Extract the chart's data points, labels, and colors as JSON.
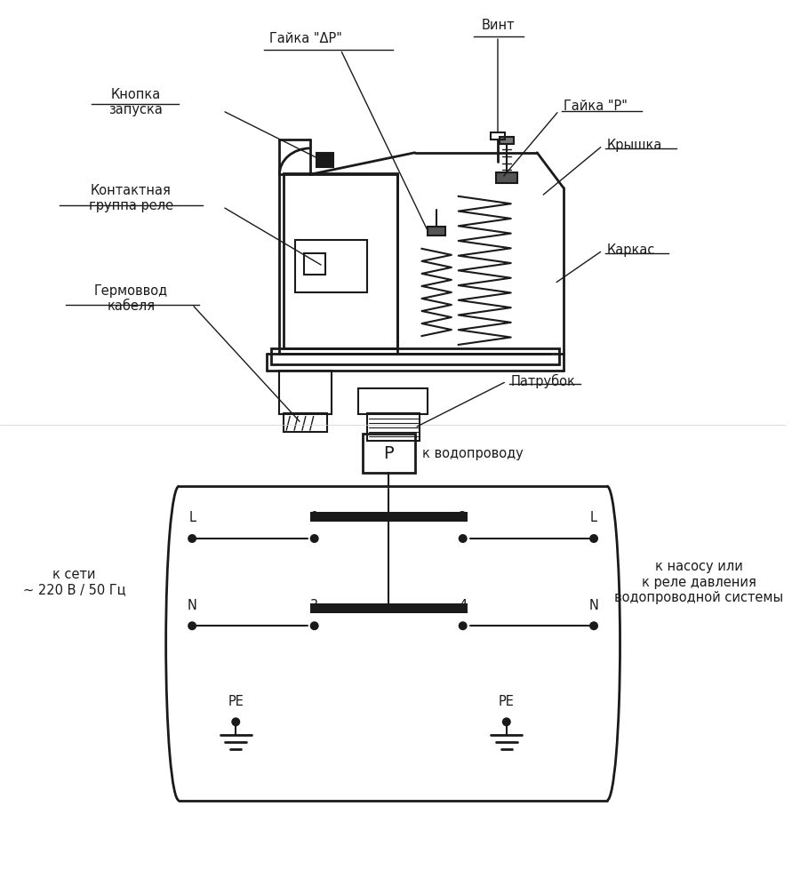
{
  "bg_color": "#f0f0f0",
  "fg_color": "#1a1a1a",
  "labels": {
    "gayka_dp": "Гайка \"ΔP\"",
    "vint": "Винт",
    "knopka": "Кнопка\nзапуска",
    "gayka_p": "Гайка \"P\"",
    "kryshka": "Крышка",
    "kontaktnaya": "Контактная\nгруппа реле",
    "germovvod": "Гермоввод\nкабеля",
    "karkas": "Каркас",
    "patrubок": "Патрубок",
    "k_vodoprovodu": "к водопроводу",
    "k_seti": "к сети\n~ 220 В / 50 Гц",
    "k_nasosu": "к насосу или\nк реле давления\nводопроводной системы"
  }
}
